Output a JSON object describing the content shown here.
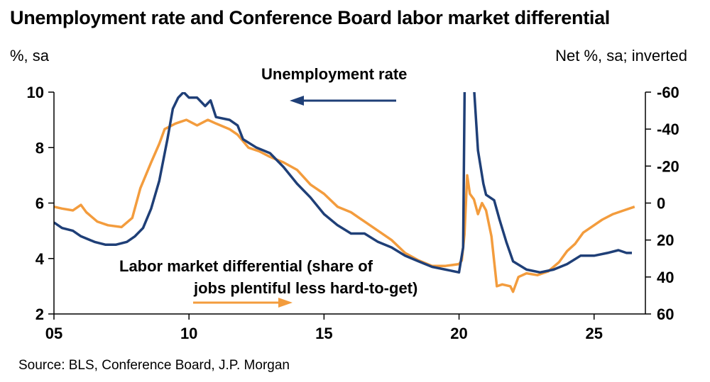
{
  "title": "Unemployment rate and Conference Board labor market differential",
  "source": "Source: BLS, Conference Board, J.P. Morgan",
  "chart_data": {
    "type": "line",
    "x_range": [
      2005,
      2026.9
    ],
    "x_ticks": [
      {
        "value": 2005,
        "label": "05"
      },
      {
        "value": 2010,
        "label": "10"
      },
      {
        "value": 2015,
        "label": "15"
      },
      {
        "value": 2020,
        "label": "20"
      },
      {
        "value": 2025,
        "label": "25"
      }
    ],
    "y_left": {
      "label": "%, sa",
      "range": [
        2,
        10
      ],
      "ticks": [
        2,
        4,
        6,
        8,
        10
      ]
    },
    "y_right": {
      "label": "Net %, sa; inverted",
      "inverted": true,
      "range": [
        -60,
        60
      ],
      "ticks": [
        -60,
        -40,
        -20,
        0,
        20,
        40,
        60
      ]
    },
    "annotations": {
      "unemployment": "Unemployment rate",
      "differential_line1": "Labor market differential (share of",
      "differential_line2": "jobs plentiful less hard-to-get)"
    },
    "series": [
      {
        "name": "Unemployment rate",
        "axis": "left",
        "color": "#1f3f77",
        "points": [
          [
            2005.0,
            5.3
          ],
          [
            2005.3,
            5.1
          ],
          [
            2005.7,
            5.0
          ],
          [
            2006.0,
            4.8
          ],
          [
            2006.5,
            4.6
          ],
          [
            2006.9,
            4.5
          ],
          [
            2007.3,
            4.5
          ],
          [
            2007.7,
            4.6
          ],
          [
            2008.0,
            4.8
          ],
          [
            2008.3,
            5.1
          ],
          [
            2008.6,
            5.8
          ],
          [
            2008.9,
            6.8
          ],
          [
            2009.2,
            8.3
          ],
          [
            2009.4,
            9.4
          ],
          [
            2009.6,
            9.8
          ],
          [
            2009.8,
            10.0
          ],
          [
            2010.0,
            9.8
          ],
          [
            2010.3,
            9.8
          ],
          [
            2010.6,
            9.5
          ],
          [
            2010.8,
            9.7
          ],
          [
            2011.0,
            9.1
          ],
          [
            2011.5,
            9.0
          ],
          [
            2011.8,
            8.8
          ],
          [
            2012.0,
            8.3
          ],
          [
            2012.5,
            8.0
          ],
          [
            2013.0,
            7.8
          ],
          [
            2013.5,
            7.3
          ],
          [
            2014.0,
            6.7
          ],
          [
            2014.5,
            6.2
          ],
          [
            2015.0,
            5.6
          ],
          [
            2015.5,
            5.2
          ],
          [
            2016.0,
            4.9
          ],
          [
            2016.5,
            4.9
          ],
          [
            2017.0,
            4.6
          ],
          [
            2017.5,
            4.4
          ],
          [
            2018.0,
            4.1
          ],
          [
            2018.5,
            3.9
          ],
          [
            2019.0,
            3.7
          ],
          [
            2019.5,
            3.6
          ],
          [
            2020.0,
            3.5
          ],
          [
            2020.15,
            4.4
          ],
          [
            2020.25,
            14.7
          ],
          [
            2020.4,
            13.3
          ],
          [
            2020.55,
            10.2
          ],
          [
            2020.7,
            7.9
          ],
          [
            2020.9,
            6.7
          ],
          [
            2021.0,
            6.3
          ],
          [
            2021.3,
            6.1
          ],
          [
            2021.5,
            5.4
          ],
          [
            2021.75,
            4.6
          ],
          [
            2022.0,
            3.9
          ],
          [
            2022.5,
            3.6
          ],
          [
            2023.0,
            3.5
          ],
          [
            2023.5,
            3.6
          ],
          [
            2024.0,
            3.8
          ],
          [
            2024.5,
            4.1
          ],
          [
            2025.0,
            4.1
          ],
          [
            2025.5,
            4.2
          ],
          [
            2025.9,
            4.3
          ],
          [
            2026.2,
            4.2
          ],
          [
            2026.4,
            4.2
          ]
        ]
      },
      {
        "name": "Labor market differential (share of jobs plentiful less hard-to-get)",
        "axis": "right",
        "color": "#f39c3d",
        "points": [
          [
            2005.0,
            2
          ],
          [
            2005.3,
            3
          ],
          [
            2005.7,
            4
          ],
          [
            2006.0,
            1
          ],
          [
            2006.2,
            5
          ],
          [
            2006.6,
            10
          ],
          [
            2007.0,
            12
          ],
          [
            2007.5,
            13
          ],
          [
            2007.9,
            8
          ],
          [
            2008.2,
            -8
          ],
          [
            2008.6,
            -22
          ],
          [
            2008.9,
            -32
          ],
          [
            2009.1,
            -40
          ],
          [
            2009.5,
            -43
          ],
          [
            2009.9,
            -45
          ],
          [
            2010.3,
            -42
          ],
          [
            2010.7,
            -45
          ],
          [
            2011.0,
            -43
          ],
          [
            2011.5,
            -40
          ],
          [
            2011.8,
            -37
          ],
          [
            2012.2,
            -30
          ],
          [
            2012.6,
            -28
          ],
          [
            2013.0,
            -25
          ],
          [
            2013.5,
            -22
          ],
          [
            2014.0,
            -18
          ],
          [
            2014.5,
            -10
          ],
          [
            2015.0,
            -5
          ],
          [
            2015.5,
            2
          ],
          [
            2016.0,
            5
          ],
          [
            2016.5,
            10
          ],
          [
            2017.0,
            15
          ],
          [
            2017.5,
            20
          ],
          [
            2018.0,
            27
          ],
          [
            2018.5,
            31
          ],
          [
            2019.0,
            34
          ],
          [
            2019.5,
            34
          ],
          [
            2020.0,
            33
          ],
          [
            2020.1,
            31
          ],
          [
            2020.2,
            17
          ],
          [
            2020.3,
            -15
          ],
          [
            2020.4,
            -5
          ],
          [
            2020.55,
            -2
          ],
          [
            2020.7,
            6
          ],
          [
            2020.85,
            0
          ],
          [
            2021.0,
            4
          ],
          [
            2021.2,
            18
          ],
          [
            2021.4,
            45
          ],
          [
            2021.6,
            44
          ],
          [
            2021.9,
            45
          ],
          [
            2022.0,
            48
          ],
          [
            2022.2,
            40
          ],
          [
            2022.5,
            38
          ],
          [
            2022.9,
            39
          ],
          [
            2023.3,
            37
          ],
          [
            2023.7,
            32
          ],
          [
            2024.0,
            26
          ],
          [
            2024.3,
            22
          ],
          [
            2024.6,
            16
          ],
          [
            2025.0,
            12
          ],
          [
            2025.3,
            9
          ],
          [
            2025.7,
            6
          ],
          [
            2026.1,
            4
          ],
          [
            2026.5,
            2
          ]
        ]
      }
    ]
  }
}
